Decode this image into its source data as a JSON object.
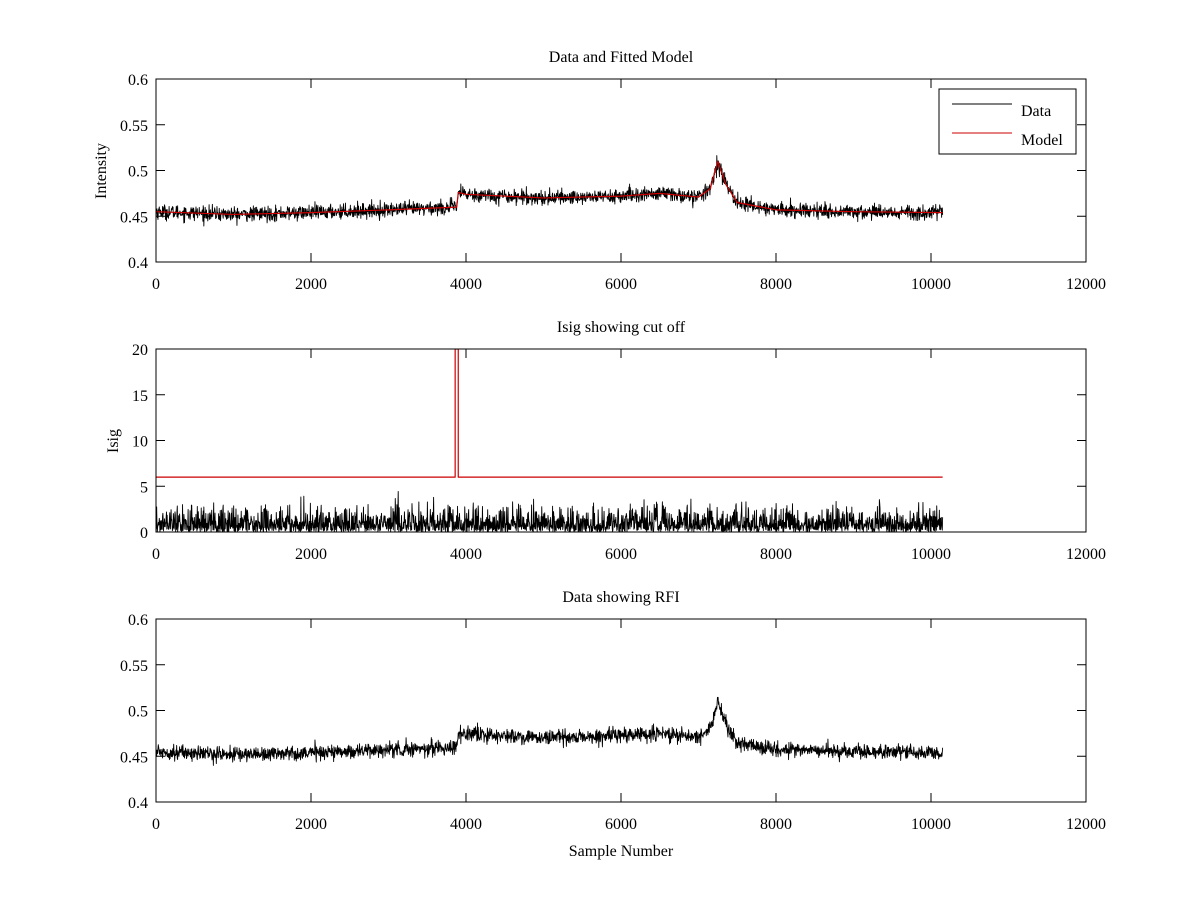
{
  "colors": {
    "data": "#000000",
    "model": "#cc0000",
    "axes": "#000000",
    "background": "#ffffff"
  },
  "chart_data": [
    {
      "id": "panel1",
      "type": "line",
      "title": "Data and Fitted Model",
      "xlabel": "",
      "ylabel": "Intensity",
      "xlim": [
        0,
        12000
      ],
      "ylim": [
        0.4,
        0.6
      ],
      "xticks": [
        0,
        2000,
        4000,
        6000,
        8000,
        10000,
        12000
      ],
      "xtick_labels": [
        "0",
        "2000",
        "4000",
        "6000",
        "8000",
        "10000",
        "12000"
      ],
      "yticks": [
        0.4,
        0.45,
        0.5,
        0.55,
        0.6
      ],
      "ytick_labels": [
        "0.4",
        "0.45",
        "0.5",
        "0.55",
        "0.6"
      ],
      "grid": false,
      "legend": {
        "placement": "top-right",
        "entries": [
          "Data",
          "Model"
        ]
      },
      "series": [
        {
          "name": "Data",
          "color": "#000000",
          "noise_amplitude": 0.012,
          "x_extent": [
            0,
            10150
          ],
          "x": [
            0,
            1000,
            2000,
            3000,
            3880,
            3900,
            4000,
            5000,
            6000,
            6500,
            7000,
            7150,
            7250,
            7350,
            7500,
            8000,
            9000,
            10150
          ],
          "y": [
            0.455,
            0.452,
            0.454,
            0.457,
            0.46,
            0.476,
            0.474,
            0.47,
            0.472,
            0.475,
            0.471,
            0.48,
            0.51,
            0.485,
            0.465,
            0.457,
            0.455,
            0.454
          ]
        },
        {
          "name": "Model",
          "color": "#cc0000",
          "x": [
            0,
            1000,
            2000,
            3000,
            3880,
            3900,
            4000,
            5000,
            6000,
            6500,
            7000,
            7150,
            7250,
            7350,
            7500,
            8000,
            9000,
            10150
          ],
          "y": [
            0.455,
            0.452,
            0.454,
            0.457,
            0.46,
            0.476,
            0.474,
            0.47,
            0.472,
            0.475,
            0.471,
            0.48,
            0.51,
            0.485,
            0.465,
            0.457,
            0.455,
            0.454
          ]
        }
      ]
    },
    {
      "id": "panel2",
      "type": "line",
      "title": "Isig showing cut off",
      "xlabel": "",
      "ylabel": "Isig",
      "xlim": [
        0,
        12000
      ],
      "ylim": [
        0,
        20
      ],
      "xticks": [
        0,
        2000,
        4000,
        6000,
        8000,
        10000,
        12000
      ],
      "xtick_labels": [
        "0",
        "2000",
        "4000",
        "6000",
        "8000",
        "10000",
        "12000"
      ],
      "yticks": [
        0,
        5,
        10,
        15,
        20
      ],
      "ytick_labels": [
        "0",
        "5",
        "10",
        "15",
        "20"
      ],
      "grid": false,
      "series": [
        {
          "color": "#000000",
          "noise_amplitude": 2.6,
          "x_extent": [
            0,
            10150
          ],
          "x": [
            0,
            10150
          ],
          "y": [
            0,
            0
          ]
        },
        {
          "color": "#cc0000",
          "x": [
            0,
            3860,
            3860,
            3900,
            3900,
            10150
          ],
          "y": [
            6,
            6,
            20,
            20,
            6,
            6
          ]
        }
      ]
    },
    {
      "id": "panel3",
      "type": "line",
      "title": "Data showing RFI",
      "xlabel": "Sample Number",
      "ylabel": "",
      "xlim": [
        0,
        12000
      ],
      "ylim": [
        0.4,
        0.6
      ],
      "xticks": [
        0,
        2000,
        4000,
        6000,
        8000,
        10000,
        12000
      ],
      "xtick_labels": [
        "0",
        "2000",
        "4000",
        "6000",
        "8000",
        "10000",
        "12000"
      ],
      "yticks": [
        0.4,
        0.45,
        0.5,
        0.55,
        0.6
      ],
      "ytick_labels": [
        "0.4",
        "0.45",
        "0.5",
        "0.55",
        "0.6"
      ],
      "grid": false,
      "series": [
        {
          "color": "#000000",
          "noise_amplitude": 0.012,
          "x_extent": [
            0,
            10150
          ],
          "x": [
            0,
            1000,
            2000,
            3000,
            3880,
            3900,
            4000,
            5000,
            6000,
            6500,
            7000,
            7150,
            7250,
            7350,
            7500,
            8000,
            9000,
            10150
          ],
          "y": [
            0.455,
            0.452,
            0.454,
            0.457,
            0.46,
            0.476,
            0.474,
            0.47,
            0.472,
            0.475,
            0.471,
            0.48,
            0.51,
            0.485,
            0.465,
            0.457,
            0.455,
            0.454
          ]
        }
      ]
    }
  ]
}
